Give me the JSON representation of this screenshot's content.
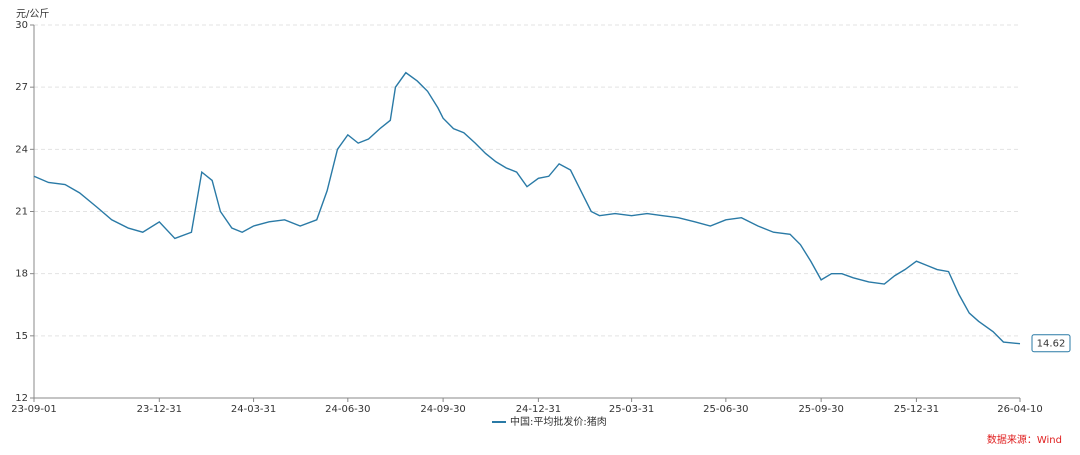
{
  "chart_data": {
    "type": "line",
    "y_label": "元/公斤",
    "source": "数据来源：Wind",
    "x": [
      "23-09-01",
      "23-09-15",
      "23-10-01",
      "23-10-15",
      "23-11-01",
      "23-11-15",
      "23-12-01",
      "23-12-15",
      "23-12-31",
      "24-01-15",
      "24-01-31",
      "24-02-10",
      "24-02-20",
      "24-02-28",
      "24-03-10",
      "24-03-20",
      "24-03-31",
      "24-04-15",
      "24-04-30",
      "24-05-15",
      "24-05-31",
      "24-06-10",
      "24-06-20",
      "24-06-30",
      "24-07-10",
      "24-07-20",
      "24-07-31",
      "24-08-10",
      "24-08-15",
      "24-08-25",
      "24-09-05",
      "24-09-15",
      "24-09-25",
      "24-09-30",
      "24-10-10",
      "24-10-20",
      "24-10-31",
      "24-11-10",
      "24-11-20",
      "24-11-30",
      "24-12-10",
      "24-12-20",
      "24-12-31",
      "25-01-10",
      "25-01-20",
      "25-01-31",
      "25-02-10",
      "25-02-20",
      "25-02-28",
      "25-03-15",
      "25-03-31",
      "25-04-15",
      "25-04-30",
      "25-05-15",
      "25-05-31",
      "25-06-15",
      "25-06-30",
      "25-07-15",
      "25-07-31",
      "25-08-15",
      "25-08-31",
      "25-09-10",
      "25-09-20",
      "25-09-30",
      "25-10-10",
      "25-10-20",
      "25-10-31",
      "25-11-15",
      "25-11-30",
      "25-12-10",
      "25-12-20",
      "25-12-31",
      "26-01-10",
      "26-01-20",
      "26-01-31",
      "26-02-10",
      "26-02-20",
      "26-03-01",
      "26-03-15",
      "26-03-25",
      "26-04-10"
    ],
    "series": [
      {
        "name": "中国:平均批发价:猪肉",
        "color": "#2a7aa6",
        "values": [
          22.7,
          22.4,
          22.3,
          21.9,
          21.2,
          20.6,
          20.2,
          20.0,
          20.5,
          19.7,
          20.0,
          22.9,
          22.5,
          21.0,
          20.2,
          20.0,
          20.3,
          20.5,
          20.6,
          20.3,
          20.6,
          22.0,
          24.0,
          24.7,
          24.3,
          24.5,
          25.0,
          25.4,
          27.0,
          27.7,
          27.3,
          26.8,
          26.0,
          25.5,
          25.0,
          24.8,
          24.3,
          23.8,
          23.4,
          23.1,
          22.9,
          22.2,
          22.6,
          22.7,
          23.3,
          23.0,
          22.0,
          21.0,
          20.8,
          20.9,
          20.8,
          20.9,
          20.8,
          20.7,
          20.5,
          20.3,
          20.6,
          20.7,
          20.3,
          20.0,
          19.9,
          19.4,
          18.6,
          17.7,
          18.0,
          18.0,
          17.8,
          17.6,
          17.5,
          17.9,
          18.2,
          18.6,
          18.4,
          18.2,
          18.1,
          17.0,
          16.1,
          15.7,
          15.2,
          14.7,
          14.62
        ]
      }
    ],
    "xlim": [
      "23-09-01",
      "26-04-10"
    ],
    "xticks": [
      "23-09-01",
      "23-12-31",
      "24-03-31",
      "24-06-30",
      "24-09-30",
      "24-12-31",
      "25-03-31",
      "25-06-30",
      "25-09-30",
      "25-12-31",
      "26-04-10"
    ],
    "ylim": [
      12,
      30
    ],
    "yticks": [
      12,
      15,
      18,
      21,
      24,
      27,
      30
    ],
    "grid": true
  }
}
